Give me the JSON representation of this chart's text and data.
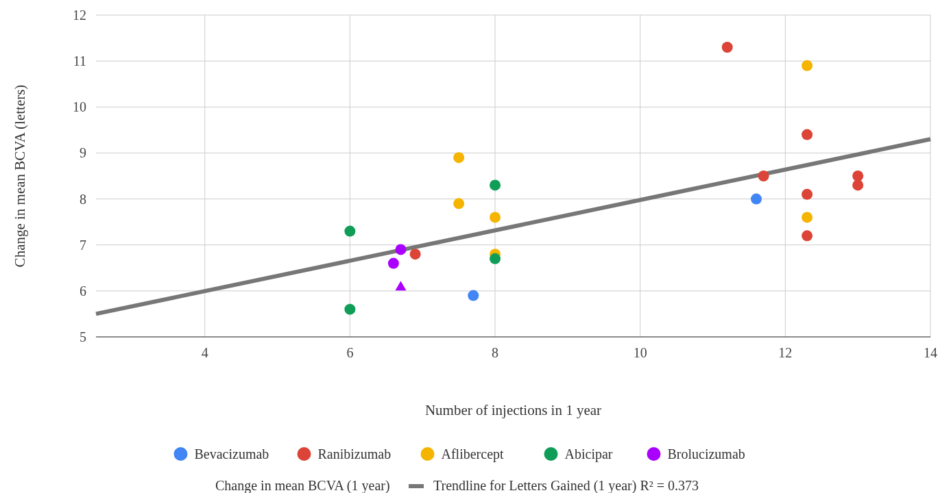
{
  "chart_data": {
    "type": "scatter",
    "xlabel": "Number of injections in 1 year",
    "ylabel": "Change in mean BCVA (letters)",
    "xlim": [
      2.5,
      14
    ],
    "xticks": [
      4,
      6,
      8,
      10,
      12,
      14
    ],
    "ylim": [
      5,
      12
    ],
    "yticks": [
      5,
      6,
      7,
      8,
      9,
      10,
      11,
      12
    ],
    "grid": true,
    "legend": "bottom",
    "marker": "circle",
    "annotations": [
      "Change in mean BCVA (1 year)"
    ],
    "series": [
      {
        "name": "Bevacizumab",
        "color": "#4285f4",
        "x": [
          11.6,
          7.7
        ],
        "values": [
          8.0,
          5.9
        ]
      },
      {
        "name": "Ranibizumab",
        "color": "#db4437",
        "x": [
          11.2,
          11.7,
          12.3,
          12.3,
          12.3,
          13.0,
          13.0,
          6.9
        ],
        "values": [
          11.3,
          8.5,
          9.4,
          8.1,
          7.2,
          8.5,
          8.3,
          6.8
        ]
      },
      {
        "name": "Aflibercept",
        "color": "#f4b400",
        "x": [
          12.3,
          12.3,
          7.5,
          7.5,
          8.0,
          8.0
        ],
        "values": [
          10.9,
          7.6,
          8.9,
          7.9,
          7.6,
          6.8
        ]
      },
      {
        "name": "Abicipar",
        "color": "#0f9d58",
        "x": [
          8.0,
          8.0,
          6.0,
          6.0
        ],
        "values": [
          8.3,
          6.7,
          7.3,
          5.6
        ]
      },
      {
        "name": "Brolucizumab",
        "color": "#aa00ff",
        "x": [
          6.6,
          6.7
        ],
        "values": [
          6.6,
          6.9
        ]
      },
      {
        "color": "#aa00ff",
        "marker": "triangle",
        "x": [
          6.7
        ],
        "values": [
          6.1
        ]
      },
      {
        "name": "Trendline for Letters Gained (1 year) R² = 0.373",
        "type": "line",
        "color": "#777777",
        "marker": "none",
        "x": [
          2.5,
          14
        ],
        "values": [
          5.5,
          9.3
        ]
      }
    ]
  }
}
